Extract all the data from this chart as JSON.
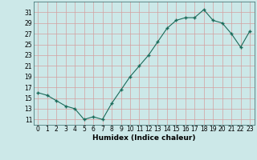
{
  "x": [
    0,
    1,
    2,
    3,
    4,
    5,
    6,
    7,
    8,
    9,
    10,
    11,
    12,
    13,
    14,
    15,
    16,
    17,
    18,
    19,
    20,
    21,
    22,
    23
  ],
  "y": [
    16,
    15.5,
    14.5,
    13.5,
    13,
    11,
    11.5,
    11,
    14,
    16.5,
    19,
    21,
    23,
    25.5,
    28,
    29.5,
    30,
    30,
    31.5,
    29.5,
    29,
    27,
    24.5,
    27.5
  ],
  "xlabel": "Humidex (Indice chaleur)",
  "xlim_min": -0.5,
  "xlim_max": 23.5,
  "ylim_min": 10,
  "ylim_max": 33,
  "yticks": [
    11,
    13,
    15,
    17,
    19,
    21,
    23,
    25,
    27,
    29,
    31
  ],
  "xticks": [
    0,
    1,
    2,
    3,
    4,
    5,
    6,
    7,
    8,
    9,
    10,
    11,
    12,
    13,
    14,
    15,
    16,
    17,
    18,
    19,
    20,
    21,
    22,
    23
  ],
  "line_color": "#1a6b5a",
  "marker_color": "#1a6b5a",
  "bg_color": "#cce8e8",
  "grid_color": "#d4a0a0",
  "fig_bg": "#cce8e8",
  "tick_fontsize": 5.5,
  "xlabel_fontsize": 6.5
}
